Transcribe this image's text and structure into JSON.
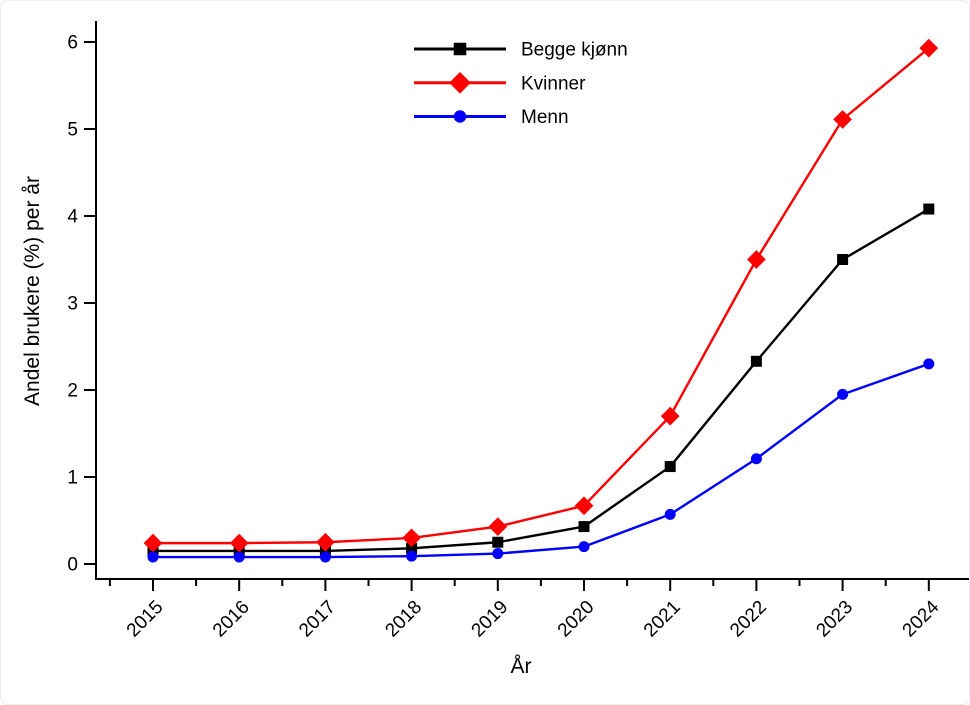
{
  "figure": {
    "kind": "statistical line chart",
    "background_color": "#ffffff",
    "axis_color": "#000000"
  },
  "chart_data": {
    "type": "line",
    "x": [
      2015,
      2016,
      2017,
      2018,
      2019,
      2020,
      2021,
      2022,
      2023,
      2024
    ],
    "series": [
      {
        "id": "begge-kjonn",
        "name": "Begge kjønn",
        "color": "#000000",
        "marker": "square",
        "values": [
          0.15,
          0.15,
          0.15,
          0.18,
          0.25,
          0.43,
          1.12,
          2.33,
          3.5,
          4.08
        ]
      },
      {
        "id": "kvinner",
        "name": "Kvinner",
        "color": "#ff0000",
        "marker": "diamond",
        "values": [
          0.24,
          0.24,
          0.25,
          0.3,
          0.43,
          0.67,
          1.7,
          3.5,
          5.11,
          5.93
        ]
      },
      {
        "id": "menn",
        "name": "Menn",
        "color": "#0000ff",
        "marker": "circle",
        "values": [
          0.08,
          0.08,
          0.08,
          0.09,
          0.12,
          0.2,
          0.57,
          1.21,
          1.95,
          2.3
        ]
      }
    ],
    "title": "",
    "xlabel": "År",
    "ylabel": "Andel brukere (%) per år",
    "xlim": [
      2014.5,
      2024.5
    ],
    "ylim": [
      0,
      6
    ],
    "yticks": [
      0,
      1,
      2,
      3,
      4,
      5,
      6
    ],
    "xtick_labels": [
      "2015",
      "2016",
      "2017",
      "2018",
      "2019",
      "2020",
      "2021",
      "2022",
      "2023",
      "2024"
    ],
    "xtick_label_angle_deg": 45,
    "grid": false,
    "legend_position": "top-center-inside",
    "legend_entries": [
      "Begge kjønn",
      "Kvinner",
      "Menn"
    ]
  }
}
